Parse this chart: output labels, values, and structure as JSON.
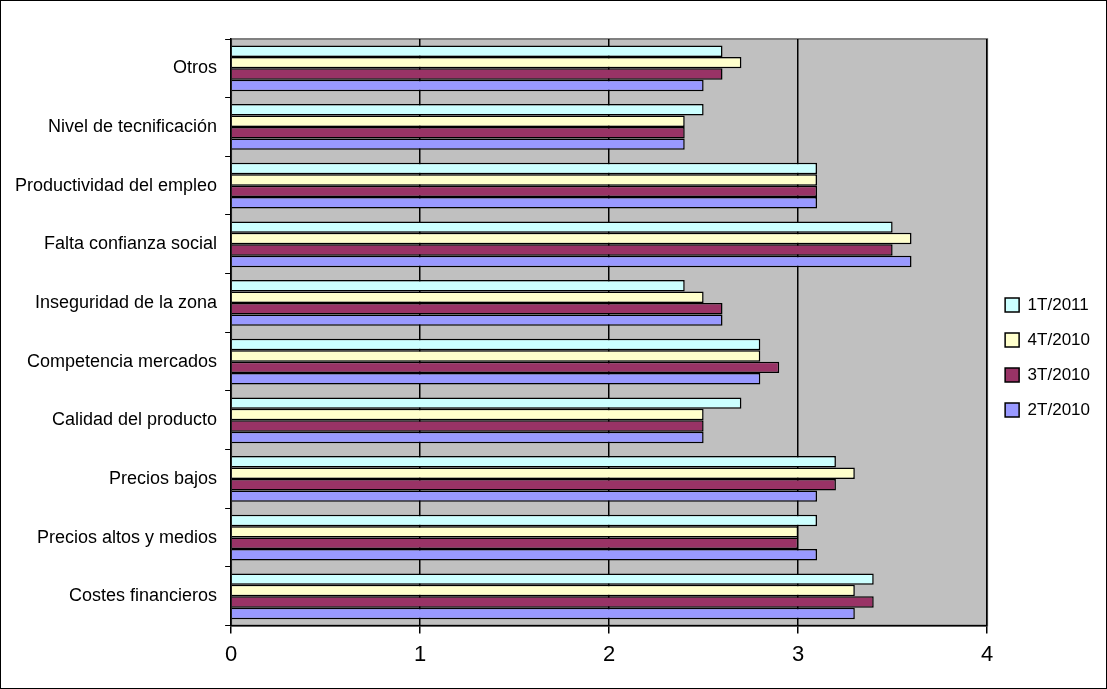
{
  "chart_data": {
    "type": "bar",
    "orientation": "horizontal",
    "categories": [
      "Otros",
      "Nivel de tecnificación",
      "Productividad del empleo",
      "Falta confianza social",
      "Inseguridad de la zona",
      "Competencia mercados",
      "Calidad del producto",
      "Precios bajos",
      "Precios altos y medios",
      "Costes financieros"
    ],
    "series": [
      {
        "name": "1T/2011",
        "color": "#ccffff",
        "values": [
          2.6,
          2.5,
          3.1,
          3.5,
          2.4,
          2.8,
          2.7,
          3.2,
          3.1,
          3.4
        ]
      },
      {
        "name": "4T/2010",
        "color": "#ffffcc",
        "values": [
          2.7,
          2.4,
          3.1,
          3.6,
          2.5,
          2.8,
          2.5,
          3.3,
          3.0,
          3.3
        ]
      },
      {
        "name": "3T/2010",
        "color": "#993366",
        "values": [
          2.6,
          2.4,
          3.1,
          3.5,
          2.6,
          2.9,
          2.5,
          3.2,
          3.0,
          3.4
        ]
      },
      {
        "name": "2T/2010",
        "color": "#9999ff",
        "values": [
          2.5,
          2.4,
          3.1,
          3.6,
          2.6,
          2.8,
          2.5,
          3.1,
          3.1,
          3.3
        ]
      }
    ],
    "xlim": [
      0,
      4
    ],
    "xticks": [
      0,
      1,
      2,
      3,
      4
    ],
    "grid": "x",
    "legend": "right"
  }
}
